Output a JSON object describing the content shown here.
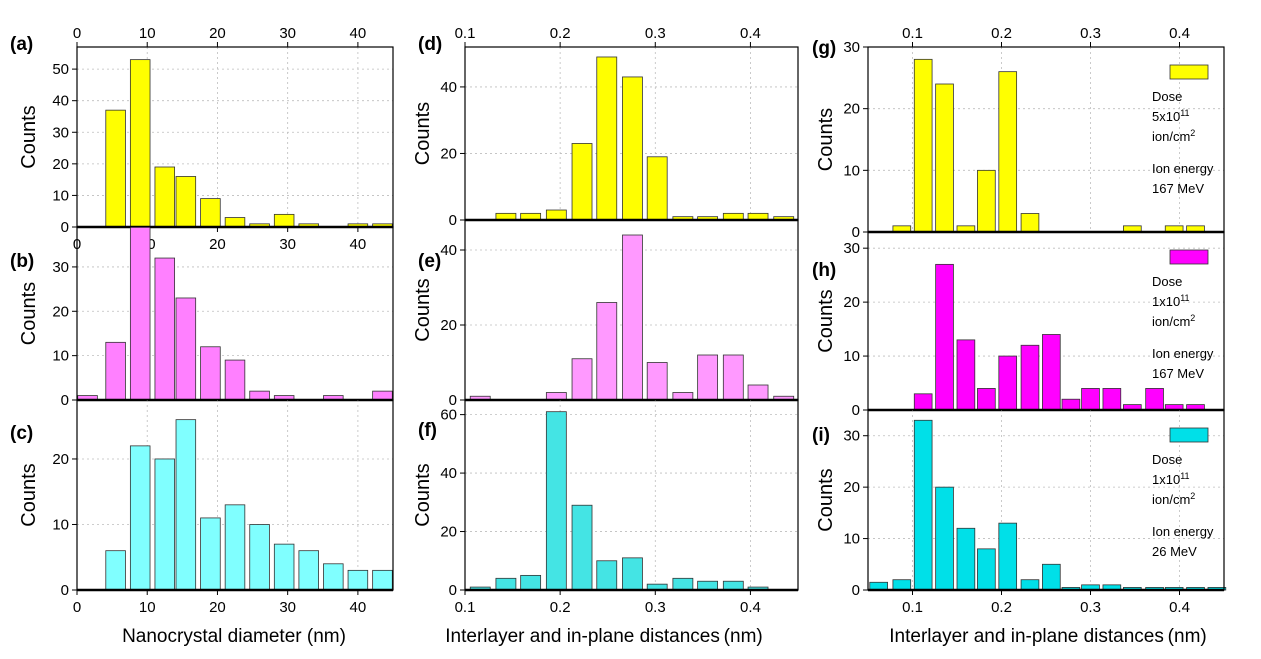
{
  "x_axis_labels": {
    "left": "Nanocrystal diameter (nm)",
    "middle": "Interlayer and in-plane distances (nm)",
    "right": "Interlayer and in-plane distances (nm)"
  },
  "y_axis_label": "Counts",
  "chart_data": [
    {
      "id": "a",
      "panel_label": "(a)",
      "type": "bar",
      "color": "#ffff00",
      "xlim": [
        0,
        45
      ],
      "ylim": [
        0,
        57
      ],
      "x_ticks": [
        "0",
        "10",
        "20",
        "30",
        "40"
      ],
      "top_ticks": [
        "0",
        "10",
        "20",
        "30",
        "40"
      ],
      "y_ticks": [
        "0",
        "10",
        "20",
        "30",
        "40",
        "50"
      ],
      "x": [
        5.5,
        9,
        12.5,
        15.5,
        19,
        22.5,
        26,
        29.5,
        33,
        36.5,
        40,
        43.5
      ],
      "values": [
        37,
        53,
        19,
        16,
        9,
        3,
        1,
        4,
        1,
        0,
        1,
        1
      ]
    },
    {
      "id": "b",
      "panel_label": "(b)",
      "type": "bar",
      "color": "#ff80ff",
      "xlim": [
        0,
        45
      ],
      "ylim": [
        0,
        39
      ],
      "y_ticks": [
        "0",
        "10",
        "20",
        "30"
      ],
      "x": [
        1.5,
        5.5,
        9,
        12.5,
        15.5,
        19,
        22.5,
        26,
        29.5,
        33,
        36.5,
        40,
        43.5
      ],
      "values": [
        1,
        13,
        39,
        32,
        23,
        12,
        9,
        2,
        1,
        0,
        1,
        0,
        2
      ]
    },
    {
      "id": "c",
      "panel_label": "(c)",
      "type": "bar",
      "color": "#80ffff",
      "xlim": [
        0,
        45
      ],
      "ylim": [
        0,
        29
      ],
      "x_ticks": [
        "0",
        "10",
        "20",
        "30",
        "40"
      ],
      "y_ticks": [
        "0",
        "10",
        "20"
      ],
      "x": [
        5.5,
        9,
        12.5,
        15.5,
        19,
        22.5,
        26,
        29.5,
        33,
        36.5,
        40,
        43.5
      ],
      "values": [
        6,
        22,
        20,
        26,
        11,
        13,
        10,
        7,
        6,
        4,
        3,
        3
      ]
    },
    {
      "id": "d",
      "panel_label": "(d)",
      "type": "bar",
      "color": "#ffff00",
      "xlim": [
        0.1,
        0.45
      ],
      "ylim": [
        0,
        52
      ],
      "top_ticks": [
        "0.1",
        "0.2",
        "0.3",
        "0.4"
      ],
      "y_ticks": [
        "0",
        "20",
        "40"
      ],
      "x": [
        0.143,
        0.169,
        0.196,
        0.223,
        0.249,
        0.276,
        0.302,
        0.329,
        0.355,
        0.382,
        0.408,
        0.435
      ],
      "values": [
        2,
        2,
        3,
        23,
        49,
        43,
        19,
        1,
        1,
        2,
        2,
        1
      ]
    },
    {
      "id": "e",
      "panel_label": "(e)",
      "type": "bar",
      "color": "#ff99ff",
      "xlim": [
        0.1,
        0.45
      ],
      "ylim": [
        0,
        48
      ],
      "y_ticks": [
        "0",
        "20",
        "40"
      ],
      "x": [
        0.116,
        0.196,
        0.223,
        0.249,
        0.276,
        0.302,
        0.329,
        0.355,
        0.382,
        0.408,
        0.435
      ],
      "values": [
        1,
        2,
        11,
        26,
        44,
        10,
        2,
        12,
        12,
        4,
        1
      ]
    },
    {
      "id": "f",
      "panel_label": "(f)",
      "type": "bar",
      "color": "#44e4e4",
      "xlim": [
        0.1,
        0.45
      ],
      "ylim": [
        0,
        65
      ],
      "x_ticks": [
        "0.1",
        "0.2",
        "0.3",
        "0.4"
      ],
      "y_ticks": [
        "0",
        "20",
        "40",
        "60"
      ],
      "x": [
        0.116,
        0.143,
        0.169,
        0.196,
        0.223,
        0.249,
        0.276,
        0.302,
        0.329,
        0.355,
        0.382,
        0.408
      ],
      "values": [
        1,
        4,
        5,
        61,
        29,
        10,
        11,
        2,
        4,
        3,
        3,
        1
      ]
    },
    {
      "id": "g",
      "panel_label": "(g)",
      "type": "bar",
      "color": "#ffff00",
      "xlim": [
        0.05,
        0.45
      ],
      "ylim": [
        0,
        30
      ],
      "top_ticks": [
        "0.1",
        "0.2",
        "0.3",
        "0.4"
      ],
      "y_ticks": [
        "0",
        "10",
        "20",
        "30"
      ],
      "x": [
        0.088,
        0.112,
        0.136,
        0.16,
        0.183,
        0.207,
        0.232,
        0.347,
        0.394,
        0.418
      ],
      "values": [
        1,
        28,
        24,
        1,
        10,
        26,
        3,
        1,
        1,
        1
      ],
      "legend": {
        "line1": "Dose",
        "line2": "5x10",
        "sup": "11",
        "line3": "ion/cm",
        "sup2": "2",
        "line4": "Ion energy",
        "line5": "167 MeV"
      }
    },
    {
      "id": "h",
      "panel_label": "(h)",
      "type": "bar",
      "color": "#ff00ff",
      "xlim": [
        0.05,
        0.45
      ],
      "ylim": [
        0,
        33
      ],
      "y_ticks": [
        "0",
        "10",
        "20",
        "30"
      ],
      "x": [
        0.112,
        0.136,
        0.16,
        0.183,
        0.207,
        0.232,
        0.256,
        0.278,
        0.3,
        0.324,
        0.347,
        0.372,
        0.394,
        0.418
      ],
      "values": [
        3,
        27,
        13,
        4,
        10,
        12,
        14,
        2,
        4,
        4,
        1,
        4,
        1,
        1
      ],
      "legend": {
        "line1": "Dose",
        "line2": "1x10",
        "sup": "11",
        "line3": "ion/cm",
        "sup2": "2",
        "line4": "Ion energy",
        "line5": "167 MeV"
      }
    },
    {
      "id": "i",
      "panel_label": "(i)",
      "type": "bar",
      "color": "#00e0e8",
      "xlim": [
        0.05,
        0.45
      ],
      "ylim": [
        0,
        35
      ],
      "x_ticks": [
        "0.1",
        "0.2",
        "0.3",
        "0.4"
      ],
      "y_ticks": [
        "0",
        "10",
        "20",
        "30"
      ],
      "x": [
        0.062,
        0.088,
        0.112,
        0.136,
        0.16,
        0.183,
        0.207,
        0.232,
        0.256,
        0.278,
        0.3,
        0.324,
        0.347,
        0.372,
        0.394,
        0.418,
        0.442
      ],
      "values": [
        1.5,
        2,
        33,
        20,
        12,
        8,
        13,
        2,
        5,
        0.5,
        1,
        1,
        0.5,
        0.5,
        0.5,
        0.5,
        0.5
      ],
      "legend": {
        "line1": "Dose",
        "line2": "1x10",
        "sup": "11",
        "line3": "ion/cm",
        "sup2": "2",
        "line4": "Ion energy",
        "line5": "26 MeV"
      }
    }
  ]
}
